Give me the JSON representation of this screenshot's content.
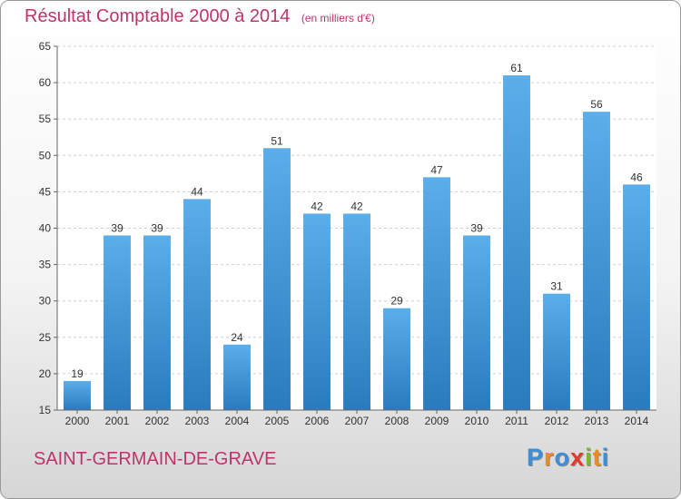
{
  "chart_data": {
    "type": "bar",
    "title": "Résultat Comptable 2000 à 2014",
    "subtitle": "(en milliers d'€)",
    "categories": [
      "2000",
      "2001",
      "2002",
      "2003",
      "2004",
      "2005",
      "2006",
      "2007",
      "2008",
      "2009",
      "2010",
      "2011",
      "2012",
      "2013",
      "2014"
    ],
    "values": [
      19,
      39,
      39,
      44,
      24,
      51,
      42,
      42,
      29,
      47,
      39,
      61,
      31,
      56,
      46
    ],
    "ylim": [
      15,
      65
    ],
    "yticks": [
      15,
      20,
      25,
      30,
      35,
      40,
      45,
      50,
      55,
      60,
      65
    ],
    "grid": true,
    "bar_color_top": "#5aaeea",
    "bar_color_bottom": "#2a7bbd"
  },
  "footer": {
    "commune": "SAINT-GERMAIN-DE-GRAVE",
    "logo_letters": [
      "P",
      "r",
      "o",
      "x",
      "i",
      "t",
      "i"
    ],
    "logo_colors": [
      "#3b8fd8",
      "#f08a1c",
      "#3b8fd8",
      "#e63a2e",
      "#7ab82e",
      "#f08a1c",
      "#3b8fd8"
    ]
  },
  "colors": {
    "title": "#c0336a"
  }
}
